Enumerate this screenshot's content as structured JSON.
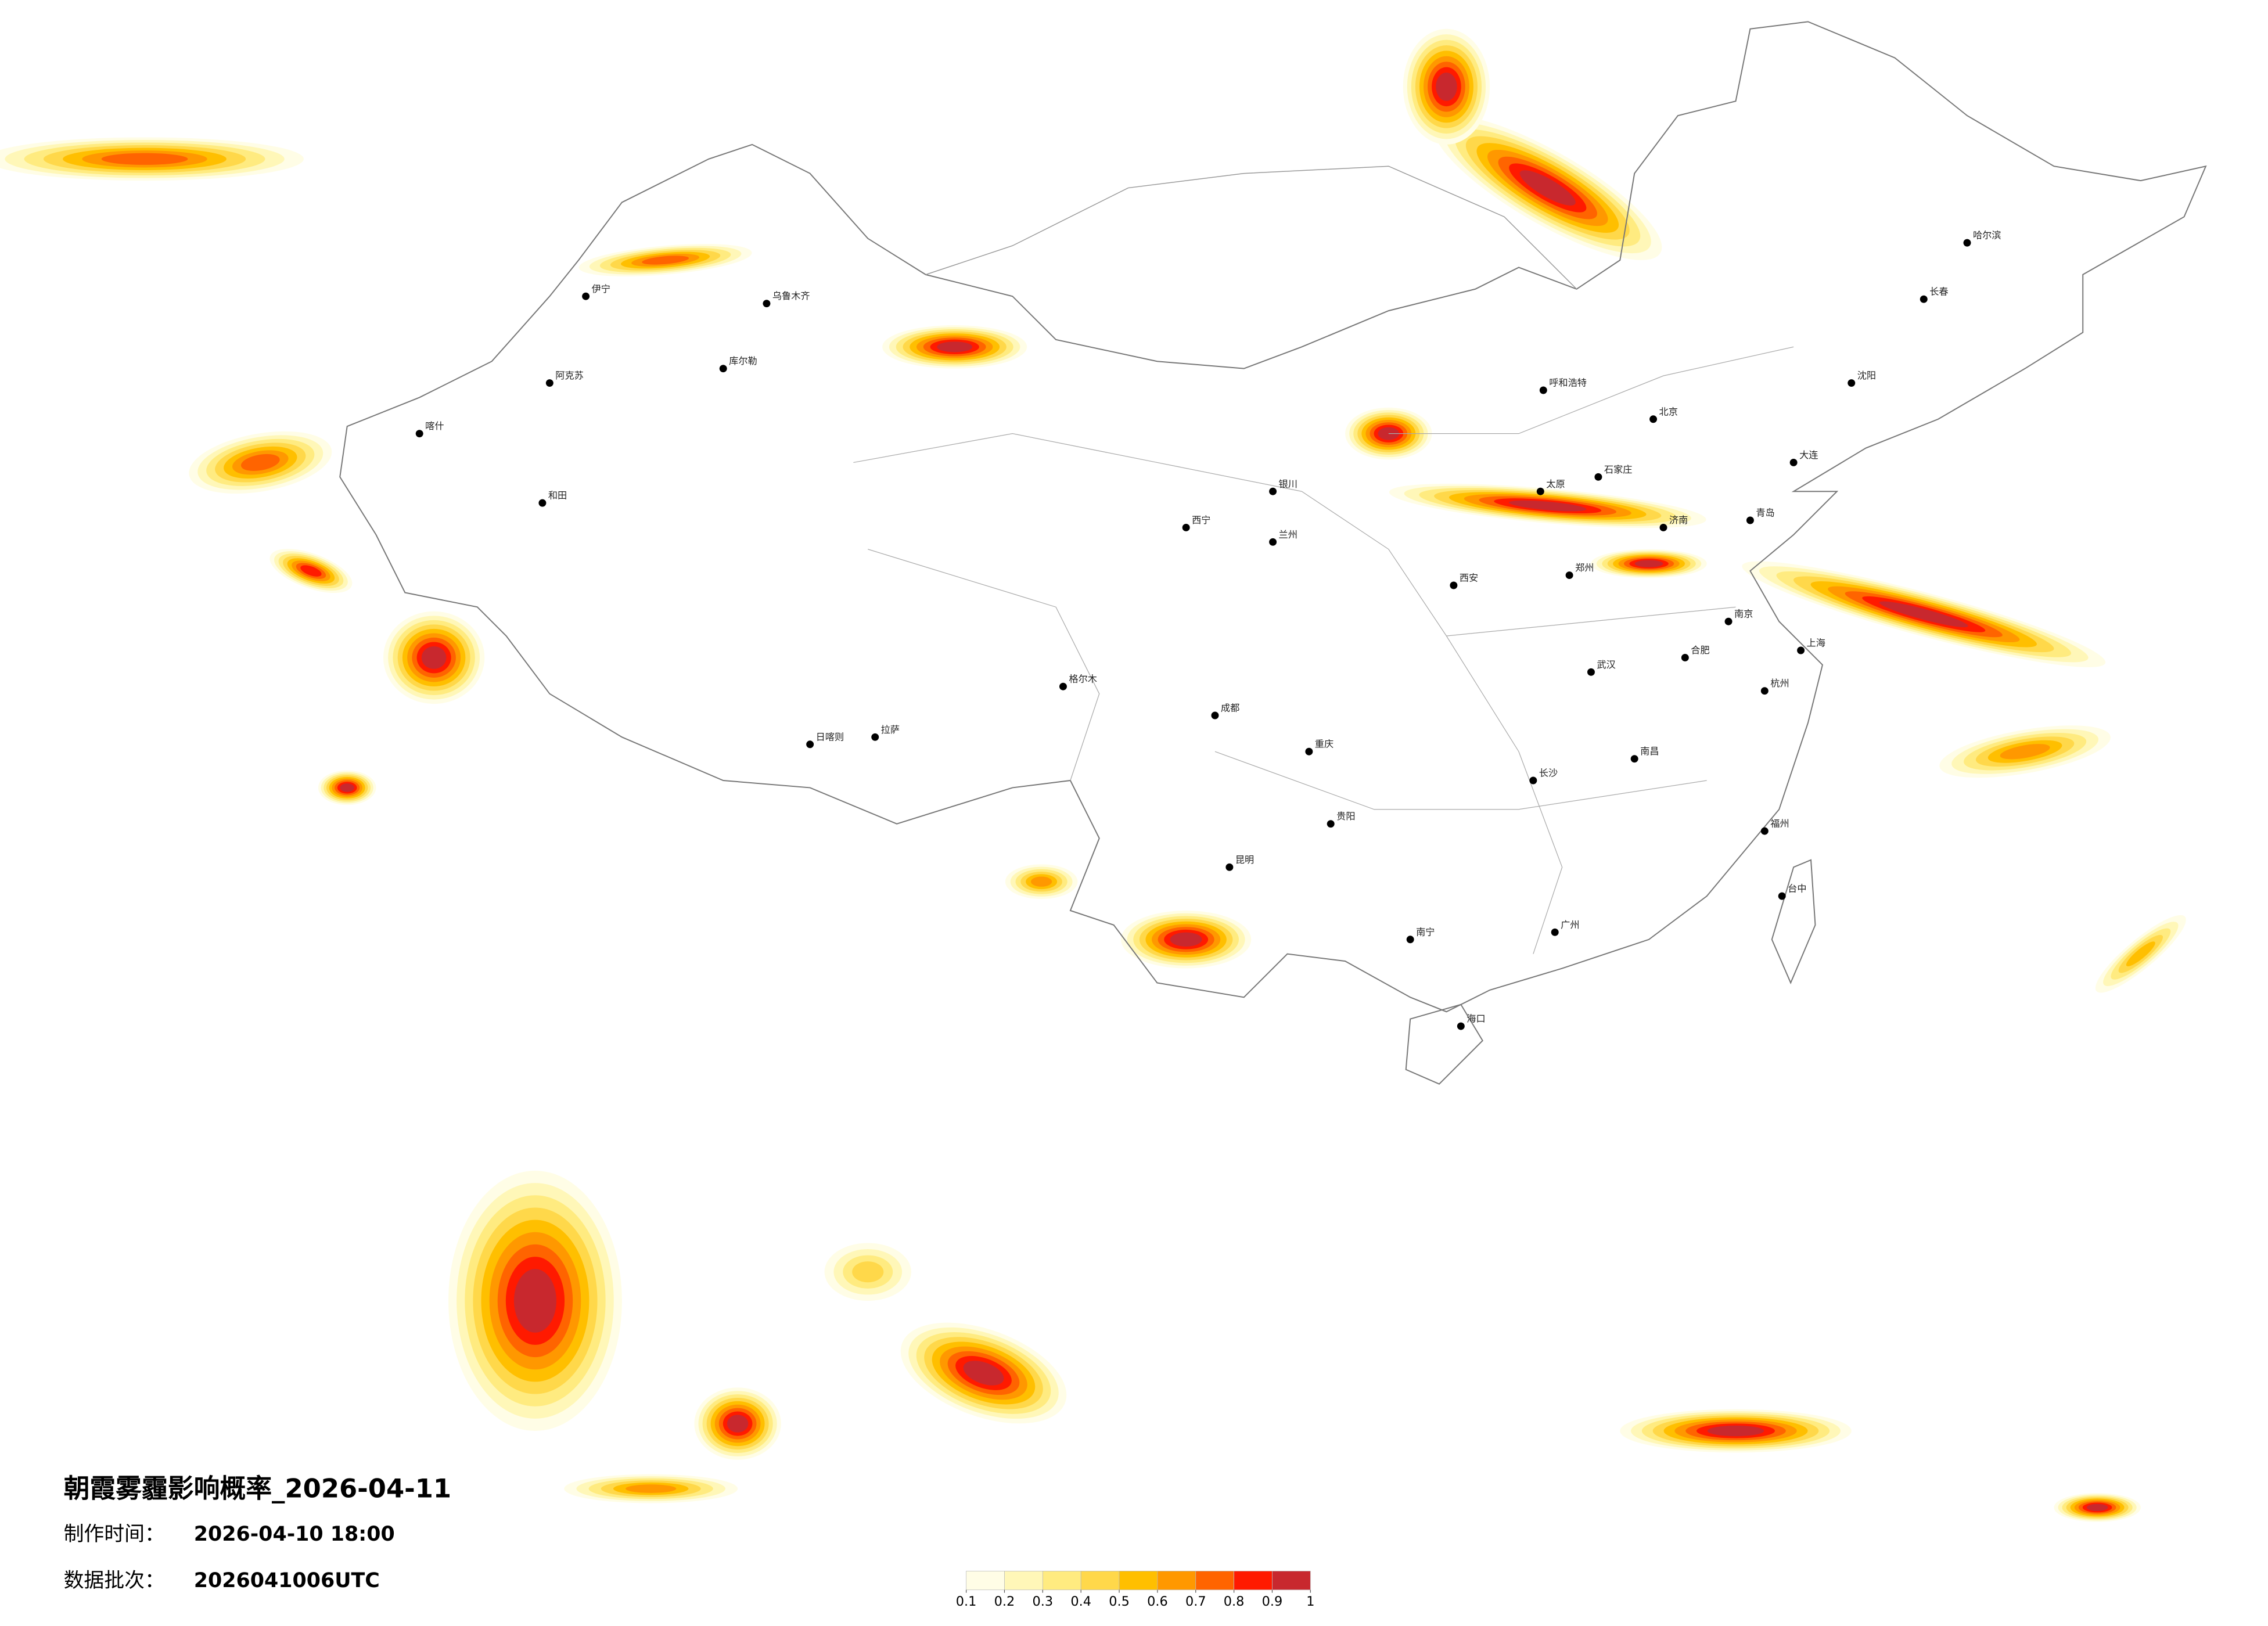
{
  "header": {
    "title": "朝霞雾霾影响概率_2026-04-11"
  },
  "info": {
    "time_label": "制作时间：",
    "time": "2026-04-10 18:00",
    "batch_label": "数据批次：",
    "batch": "2026041006UTC"
  },
  "legend": {
    "ticks": [
      0.1,
      0.2,
      0.3,
      0.4,
      0.5,
      0.6,
      0.7,
      0.8,
      0.9,
      1
    ],
    "colors": [
      "#fffde6",
      "#fff7b8",
      "#ffeb80",
      "#ffd84a",
      "#ffbf00",
      "#ff9800",
      "#ff6400",
      "#ff1a00",
      "#c8282e"
    ]
  },
  "cities": [
    "北京",
    "哈尔滨",
    "长春",
    "沈阳",
    "呼和浩特",
    "石家庄",
    "太原",
    "济南",
    "郑州",
    "西安",
    "兰州",
    "西宁",
    "银川",
    "乌鲁木齐",
    "拉萨",
    "成都",
    "重庆",
    "武汉",
    "长沙",
    "南昌",
    "合肥",
    "南京",
    "杭州",
    "福州",
    "广州",
    "南宁",
    "贵阳",
    "昆明",
    "海口",
    "台中",
    "伊宁",
    "喀什",
    "和田",
    "阿克苏",
    "库尔勒",
    "日喀则",
    "格尔木",
    "大连",
    "青岛",
    "上海"
  ]
}
